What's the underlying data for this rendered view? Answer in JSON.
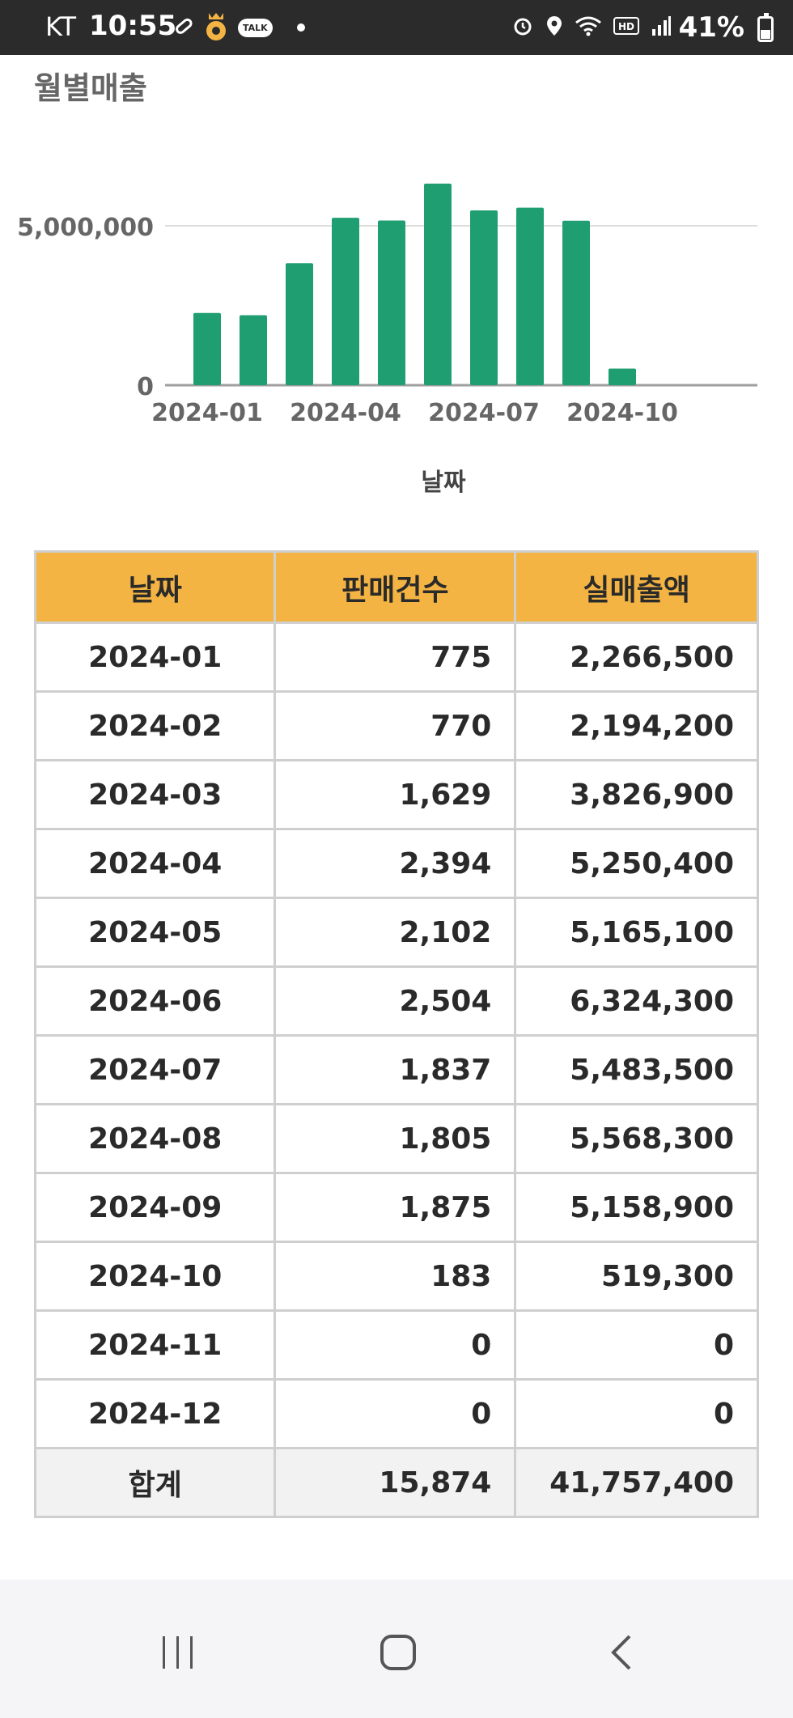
{
  "status_bar": {
    "carrier": "KT",
    "time": "10:55",
    "talk_label": "TALK",
    "battery": "41%",
    "battery_level": 0.41,
    "icons": [
      "pill-icon",
      "quest-bag-icon",
      "kakaotalk-icon",
      "notification-dot",
      "alarm-icon",
      "location-icon",
      "wifi-icon",
      "hd-voice-icon",
      "signal-icon",
      "battery-icon"
    ]
  },
  "header": {
    "title": "월별매출"
  },
  "chart_data": {
    "type": "bar",
    "categories": [
      "2024-01",
      "2024-02",
      "2024-03",
      "2024-04",
      "2024-05",
      "2024-06",
      "2024-07",
      "2024-08",
      "2024-09",
      "2024-10",
      "2024-11",
      "2024-12"
    ],
    "values": [
      2266500,
      2194200,
      3826900,
      5250400,
      5165100,
      6324300,
      5483500,
      5568300,
      5158900,
      519300,
      0,
      0
    ],
    "tick_labels_x": [
      "2024-01",
      "2024-04",
      "2024-07",
      "2024-10"
    ],
    "tick_labels_y": [
      "0",
      "5,000,000"
    ],
    "y_ticks": [
      0,
      5000000
    ],
    "ylim": [
      0,
      7000000
    ],
    "xlabel": "날짜",
    "ylabel": "",
    "grid": true,
    "bar_color": "#1f9e72"
  },
  "table": {
    "headers": [
      "날짜",
      "판매건수",
      "실매출액"
    ],
    "rows": [
      [
        "2024-01",
        "775",
        "2,266,500"
      ],
      [
        "2024-02",
        "770",
        "2,194,200"
      ],
      [
        "2024-03",
        "1,629",
        "3,826,900"
      ],
      [
        "2024-04",
        "2,394",
        "5,250,400"
      ],
      [
        "2024-05",
        "2,102",
        "5,165,100"
      ],
      [
        "2024-06",
        "2,504",
        "6,324,300"
      ],
      [
        "2024-07",
        "1,837",
        "5,483,500"
      ],
      [
        "2024-08",
        "1,805",
        "5,568,300"
      ],
      [
        "2024-09",
        "1,875",
        "5,158,900"
      ],
      [
        "2024-10",
        "183",
        "519,300"
      ],
      [
        "2024-11",
        "0",
        "0"
      ],
      [
        "2024-12",
        "0",
        "0"
      ]
    ],
    "total": [
      "합계",
      "15,874",
      "41,757,400"
    ],
    "header_color": "#f4b443"
  },
  "nav_bar": {
    "buttons": [
      "recent-apps-icon",
      "home-icon",
      "back-icon"
    ]
  }
}
